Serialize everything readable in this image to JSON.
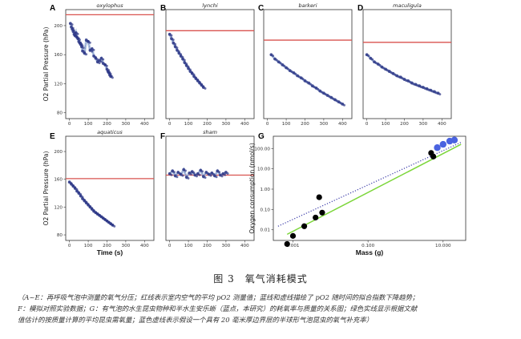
{
  "caption": {
    "title": "图 3　氧气消耗模式",
    "lines": [
      "（A~E：再呼吸气泡中测量的氧气分压；红线表示室内空气的平均 pO2 测量值；蓝线和虚线描绘了 pO2 随时间的拟合指数下降趋势；",
      "F：模拟对照实验数据；G：有气泡的水生昆虫物种和半水生安乐蜥（蓝点，本研究）的耗氧率与质量的关系图；绿色实线显示根据文献",
      "值估计的按质量计算的平均昆虫需氧量；蓝色虚线表示假设一个具有 20 毫米厚边界层的半球形气泡昆虫的氧气补充率）"
    ]
  },
  "colors": {
    "reference_line": "#d9534f",
    "points": "#2b3585",
    "fit": "#9db4d8",
    "green": "#7cd63a",
    "blue_dots": "#4a63e0"
  },
  "chart_data": [
    {
      "panel": "A",
      "title": "oxylophus",
      "type": "scatter",
      "ylabel": "O2 Partial Pressure (hPa)",
      "xlabel": "",
      "xticks": [
        "0",
        "100",
        "200",
        "300",
        "400"
      ],
      "yticks": [
        "80",
        "120",
        "160",
        "200"
      ],
      "xlim": [
        -20,
        450
      ],
      "ylim": [
        72,
        222
      ],
      "reference_line": 215,
      "x": [
        5,
        10,
        15,
        20,
        25,
        30,
        35,
        40,
        45,
        50,
        55,
        60,
        65,
        70,
        80,
        90,
        100,
        110,
        120,
        130,
        140,
        150,
        160,
        170,
        180,
        190,
        200,
        205,
        210,
        215,
        220
      ],
      "y": [
        203,
        198,
        195,
        192,
        188,
        186,
        190,
        184,
        182,
        178,
        176,
        174,
        171,
        165,
        162,
        180,
        178,
        166,
        168,
        158,
        155,
        150,
        152,
        155,
        148,
        146,
        140,
        137,
        135,
        132,
        130
      ]
    },
    {
      "panel": "B",
      "title": "lynchi",
      "type": "scatter",
      "ylabel": "",
      "xlabel": "",
      "xticks": [
        "0",
        "100",
        "200",
        "300",
        "400"
      ],
      "yticks": [],
      "xlim": [
        -20,
        450
      ],
      "ylim": [
        72,
        222
      ],
      "reference_line": 193,
      "x": [
        0,
        10,
        20,
        30,
        40,
        50,
        60,
        70,
        80,
        90,
        100,
        110,
        120,
        130,
        140,
        150,
        160,
        170,
        180
      ],
      "y": [
        188,
        182,
        176,
        171,
        166,
        162,
        158,
        154,
        149,
        145,
        141,
        137,
        134,
        130,
        127,
        124,
        121,
        118,
        115
      ]
    },
    {
      "panel": "C",
      "title": "barkeri",
      "type": "scatter",
      "ylabel": "",
      "xlabel": "",
      "xticks": [
        "0",
        "100",
        "200",
        "300",
        "400"
      ],
      "yticks": [],
      "xlim": [
        -20,
        450
      ],
      "ylim": [
        72,
        222
      ],
      "reference_line": 180,
      "x": [
        20,
        40,
        60,
        80,
        100,
        120,
        140,
        160,
        180,
        200,
        220,
        240,
        260,
        280,
        300,
        320,
        340,
        360,
        380,
        400
      ],
      "y": [
        160,
        154,
        150,
        146,
        142,
        138,
        135,
        131,
        128,
        124,
        121,
        117,
        114,
        110,
        107,
        104,
        101,
        98,
        95,
        92
      ]
    },
    {
      "panel": "D",
      "title": "maculigula",
      "type": "scatter",
      "ylabel": "",
      "xlabel": "",
      "xticks": [
        "0",
        "100",
        "200",
        "300",
        "400"
      ],
      "yticks": [],
      "xlim": [
        -20,
        450
      ],
      "ylim": [
        72,
        222
      ],
      "reference_line": 177,
      "x": [
        0,
        20,
        40,
        60,
        80,
        100,
        120,
        140,
        160,
        180,
        200,
        220,
        240,
        260,
        280,
        300,
        320,
        340,
        360,
        380
      ],
      "y": [
        160,
        155,
        150,
        147,
        143,
        140,
        137,
        134,
        131,
        129,
        126,
        124,
        121,
        119,
        117,
        115,
        113,
        111,
        109,
        107
      ]
    },
    {
      "panel": "E",
      "title": "aquaticus",
      "type": "scatter",
      "ylabel": "O2 Partial Pressure (hPa)",
      "xlabel": "Time (s)",
      "xticks": [
        "0",
        "100",
        "200",
        "300",
        "400"
      ],
      "yticks": [
        "80",
        "120",
        "160",
        "200"
      ],
      "xlim": [
        -20,
        450
      ],
      "ylim": [
        72,
        222
      ],
      "reference_line": 161,
      "x": [
        0,
        10,
        20,
        30,
        40,
        50,
        60,
        70,
        80,
        90,
        100,
        110,
        120,
        130,
        140,
        150,
        160,
        170,
        180,
        190,
        200,
        210,
        220,
        230
      ],
      "y": [
        156,
        153,
        150,
        147,
        143,
        140,
        136,
        132,
        129,
        126,
        123,
        120,
        117,
        114,
        112,
        110,
        108,
        106,
        104,
        102,
        100,
        98,
        96,
        94
      ]
    },
    {
      "panel": "F",
      "title": "sham",
      "type": "scatter",
      "ylabel": "",
      "xlabel": "",
      "xticks": [
        "0",
        "100",
        "200",
        "300",
        "400"
      ],
      "yticks": [],
      "xlim": [
        -20,
        450
      ],
      "ylim": [
        72,
        222
      ],
      "reference_line": 166,
      "x": [
        0,
        15,
        30,
        45,
        60,
        75,
        90,
        105,
        120,
        135,
        150,
        165,
        180,
        195,
        210,
        225,
        240,
        255,
        270,
        285,
        300
      ],
      "y": [
        168,
        172,
        165,
        170,
        167,
        174,
        163,
        169,
        171,
        166,
        168,
        173,
        164,
        170,
        167,
        169,
        165,
        172,
        166,
        168,
        170
      ]
    },
    {
      "panel": "G",
      "type": "scatter",
      "xlabel": "Mass (g)",
      "ylabel": "Oxygen consumption (nmol/s)",
      "xscale": "log",
      "yscale": "log",
      "xticks": [
        "0.001",
        "0.100",
        "10.000"
      ],
      "yticks": [
        "0.01",
        "0.10",
        "1.00",
        "10.00",
        "100.00"
      ],
      "xlim": [
        0.0003,
        40
      ],
      "ylim": [
        0.003,
        400
      ],
      "insects": {
        "x": [
          0.0007,
          0.001,
          0.002,
          0.004,
          0.005,
          0.006,
          4.8,
          5.5
        ],
        "y": [
          0.002,
          0.005,
          0.015,
          0.04,
          0.4,
          0.07,
          60,
          40
        ]
      },
      "anoles": {
        "x": [
          7,
          10,
          15,
          20
        ],
        "y": [
          110,
          160,
          230,
          260
        ]
      },
      "green_line": {
        "x": [
          0.0007,
          30
        ],
        "y": [
          0.006,
          160
        ]
      },
      "dotted_line": {
        "x": [
          0.0004,
          30
        ],
        "y": [
          0.015,
          200
        ]
      }
    }
  ]
}
